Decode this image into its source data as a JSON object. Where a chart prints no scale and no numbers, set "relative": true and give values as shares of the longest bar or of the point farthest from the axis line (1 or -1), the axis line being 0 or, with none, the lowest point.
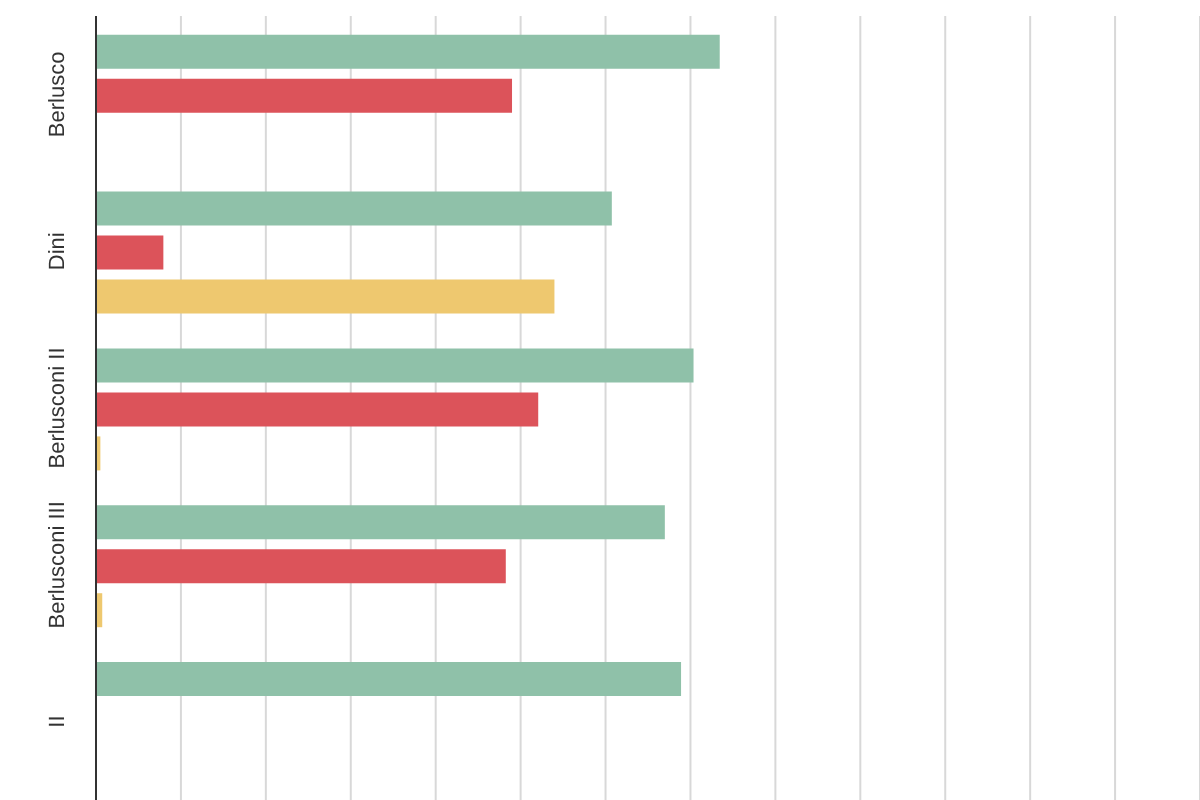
{
  "chart_data": {
    "type": "bar",
    "orientation": "horizontal",
    "relative": true,
    "grid": "x",
    "legend": false,
    "categories": [
      "Berlusco",
      "Dini",
      "Berlusconi II",
      "Berlusconi III",
      "II"
    ],
    "series": [
      {
        "color": "#8fc1a9",
        "values": [
          1,
          0.827,
          0.958,
          0.912,
          0.938
        ]
      },
      {
        "color": "#dc535a",
        "values": [
          0.667,
          0.108,
          0.709,
          0.657,
          null
        ]
      },
      {
        "color": "#eec86f",
        "values": [
          0,
          0.735,
          0.007,
          0.01,
          null
        ]
      }
    ]
  }
}
